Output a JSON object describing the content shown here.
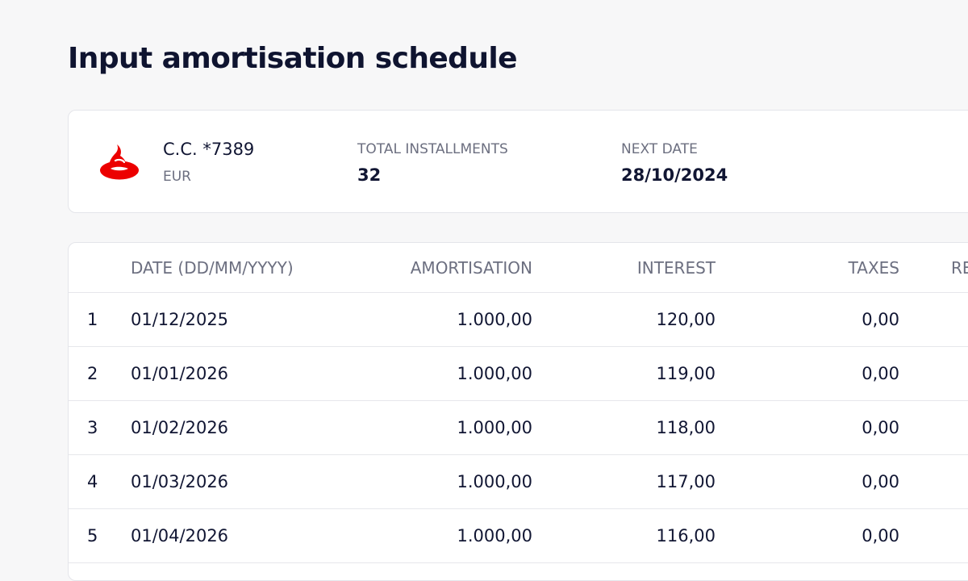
{
  "page": {
    "title": "Input amortisation schedule"
  },
  "account": {
    "name": "C.C. *7389",
    "currency": "EUR",
    "logo_icon": "santander-flame-icon",
    "brand_color": "#ec0000",
    "total_installments_label": "TOTAL INSTALLMENTS",
    "total_installments_value": "32",
    "next_date_label": "NEXT DATE",
    "next_date_value": "28/10/2024"
  },
  "table": {
    "headers": {
      "number": "",
      "date": "DATE (DD/MM/YYYY)",
      "amortisation": "AMORTISATION",
      "interest": "INTEREST",
      "taxes": "TAXES",
      "rest": "RE"
    },
    "rows": [
      {
        "n": "1",
        "date": "01/12/2025",
        "amortisation": "1.000,00",
        "interest": "120,00",
        "taxes": "0,00"
      },
      {
        "n": "2",
        "date": "01/01/2026",
        "amortisation": "1.000,00",
        "interest": "119,00",
        "taxes": "0,00"
      },
      {
        "n": "3",
        "date": "01/02/2026",
        "amortisation": "1.000,00",
        "interest": "118,00",
        "taxes": "0,00"
      },
      {
        "n": "4",
        "date": "01/03/2026",
        "amortisation": "1.000,00",
        "interest": "117,00",
        "taxes": "0,00"
      },
      {
        "n": "5",
        "date": "01/04/2026",
        "amortisation": "1.000,00",
        "interest": "116,00",
        "taxes": "0,00"
      }
    ]
  }
}
